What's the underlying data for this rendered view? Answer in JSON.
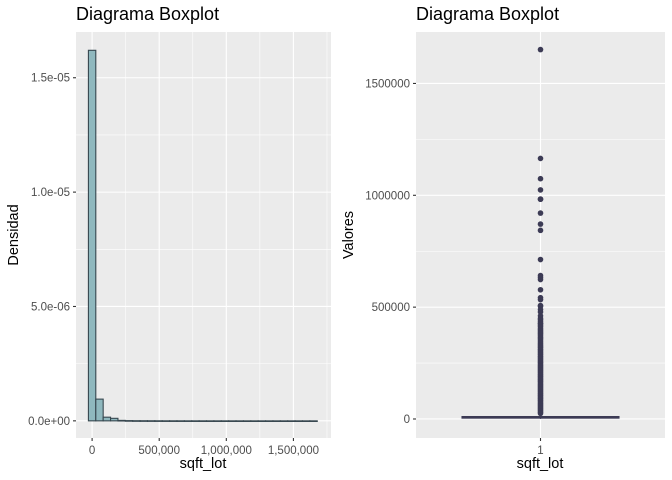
{
  "chart_data": [
    {
      "type": "histogram",
      "title": "Diagrama Boxplot",
      "xlabel": "sqft_lot",
      "ylabel": "Densidad",
      "xlim": [
        -120000,
        1780000
      ],
      "ylim": [
        -7.5e-07,
        1.7e-05
      ],
      "x_ticks": [
        0,
        500000,
        1000000,
        1500000
      ],
      "x_tick_labels": [
        "0",
        "500,000",
        "1,000,000",
        "1,500,000"
      ],
      "x_minor": [
        250000,
        750000,
        1250000,
        1750000
      ],
      "y_ticks": [
        0,
        5e-06,
        1e-05,
        1.5e-05
      ],
      "y_tick_labels": [
        "0.0e+00",
        "5.0e-06",
        "1.0e-05",
        "1.5e-05"
      ],
      "y_minor": [
        2.5e-06,
        7.5e-06,
        1.25e-05
      ],
      "bin_width": 55000,
      "bins_start": [
        -27500,
        27500,
        82500,
        137500,
        192500,
        247500,
        302500,
        357500,
        412500,
        467500,
        522500,
        577500,
        632500,
        687500,
        742500,
        797500,
        852500,
        907500,
        962500,
        1017500,
        1072500,
        1127500,
        1182500,
        1237500,
        1292500,
        1347500,
        1402500,
        1457500,
        1512500,
        1567500,
        1622500
      ],
      "density": [
        1.62e-05,
        9.5e-07,
        1.6e-07,
        1.1e-07,
        2e-08,
        1e-08,
        6e-09,
        5e-09,
        4e-09,
        3e-09,
        2e-09,
        2e-09,
        1.5e-09,
        1.2e-09,
        1e-09,
        8e-10,
        6e-10,
        5e-10,
        4e-10,
        3e-10,
        3e-10,
        2e-10,
        2e-10,
        1e-10,
        1e-10,
        1e-10,
        1e-10,
        1e-10,
        1e-10,
        1e-10,
        1e-10
      ],
      "fill_color": "#8fb8be",
      "line_color": "#37474f"
    },
    {
      "type": "boxplot",
      "title": "Diagrama Boxplot",
      "xlabel": "sqft_lot",
      "ylabel": "Valores",
      "x_categories": [
        "1"
      ],
      "ylim": [
        -85000,
        1730000
      ],
      "y_ticks": [
        0,
        500000,
        1000000,
        1500000
      ],
      "y_tick_labels": [
        "0",
        "500000",
        "1000000",
        "1500000"
      ],
      "y_minor": [
        250000,
        750000,
        1250000
      ],
      "box": {
        "min": 520,
        "q1": 5040,
        "median": 7620,
        "q3": 10688,
        "max": 19150
      },
      "outliers": [
        1651359,
        1164794,
        1074218,
        1024068,
        982998,
        982278,
        920423,
        871200,
        843309,
        712846,
        641203,
        632808,
        623480,
        577605,
        542322,
        533610,
        507038,
        503989,
        489218,
        478288,
        461300,
        449625,
        443440,
        435600,
        428024,
        425581,
        418611,
        412384,
        404236,
        398574,
        392040,
        385506,
        379843,
        373262,
        366210,
        359284,
        352836,
        345321,
        338022,
        331491,
        325126,
        318859,
        312372,
        306848,
        300000,
        294030,
        287496,
        281221,
        275299,
        269359,
        263425,
        257568,
        251838,
        246114,
        240468,
        234788,
        229127,
        223462,
        217800,
        212137,
        206474,
        200811,
        195149,
        189486,
        183823,
        178160,
        172498,
        166835,
        161172,
        155509,
        149846,
        144184,
        138521,
        132858,
        127195,
        121532,
        115870,
        110207,
        104544,
        98881,
        93218,
        87556,
        81893,
        76230,
        70567,
        64904,
        59242,
        53579,
        47916,
        42253,
        36590,
        30928,
        25265
      ],
      "point_color": "#3c3b55"
    }
  ]
}
